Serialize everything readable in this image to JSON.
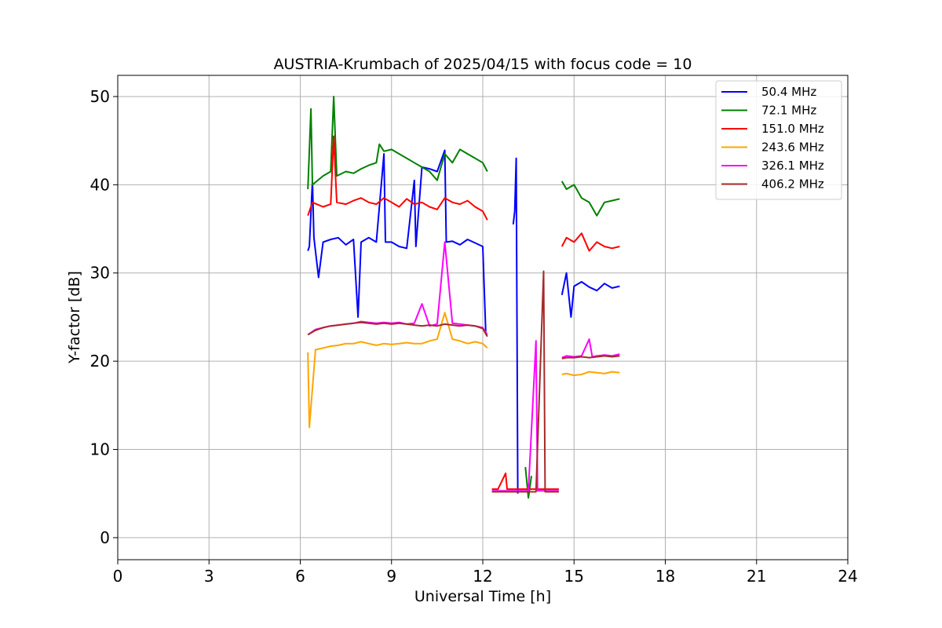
{
  "chart_data": {
    "type": "line",
    "title": "AUSTRIA-Krumbach of 2025/04/15 with focus code = 10",
    "xlabel": "Universal Time [h]",
    "ylabel": "Y-factor [dB]",
    "xlim": [
      0,
      24
    ],
    "ylim": [
      -2.5,
      52.4
    ],
    "xticks": [
      "0",
      "3",
      "6",
      "9",
      "12",
      "15",
      "18",
      "21",
      "24"
    ],
    "yticks": [
      "0",
      "10",
      "20",
      "30",
      "40",
      "50"
    ],
    "grid": true,
    "legend_position": "top-right",
    "series": [
      {
        "name": " 50.4 MHz",
        "color": "#0000ff",
        "segments": [
          [
            [
              6.25,
              32.5
            ],
            [
              6.3,
              33.0
            ],
            [
              6.4,
              40.4
            ],
            [
              6.45,
              34.0
            ],
            [
              6.6,
              29.5
            ],
            [
              6.75,
              33.5
            ],
            [
              7.0,
              33.8
            ],
            [
              7.25,
              34.0
            ],
            [
              7.5,
              33.2
            ],
            [
              7.75,
              33.8
            ],
            [
              7.9,
              25.0
            ],
            [
              8.0,
              33.5
            ],
            [
              8.25,
              34.0
            ],
            [
              8.5,
              33.5
            ],
            [
              8.75,
              43.5
            ],
            [
              8.8,
              33.5
            ],
            [
              9.0,
              33.5
            ],
            [
              9.25,
              33.0
            ],
            [
              9.5,
              32.8
            ],
            [
              9.75,
              40.5
            ],
            [
              9.8,
              33.0
            ],
            [
              10.0,
              42.0
            ],
            [
              10.25,
              41.8
            ],
            [
              10.5,
              41.5
            ],
            [
              10.75,
              43.9
            ],
            [
              10.8,
              33.5
            ],
            [
              11.0,
              33.6
            ],
            [
              11.25,
              33.2
            ],
            [
              11.5,
              33.8
            ],
            [
              11.75,
              33.4
            ],
            [
              12.0,
              33.0
            ],
            [
              12.1,
              23.0
            ]
          ],
          [
            [
              13.0,
              35.5
            ],
            [
              13.05,
              37.0
            ],
            [
              13.1,
              43.0
            ],
            [
              13.15,
              5.0
            ]
          ],
          [
            [
              14.6,
              27.5
            ],
            [
              14.75,
              30.0
            ],
            [
              14.9,
              25.0
            ],
            [
              15.0,
              28.5
            ],
            [
              15.25,
              29.0
            ],
            [
              15.5,
              28.4
            ],
            [
              15.75,
              28.0
            ],
            [
              16.0,
              28.8
            ],
            [
              16.25,
              28.3
            ],
            [
              16.5,
              28.5
            ]
          ]
        ]
      },
      {
        "name": " 72.1 MHz",
        "color": "#008000",
        "segments": [
          [
            [
              6.25,
              39.5
            ],
            [
              6.35,
              48.6
            ],
            [
              6.4,
              40.0
            ],
            [
              6.75,
              41.0
            ],
            [
              7.0,
              41.5
            ],
            [
              7.1,
              50.0
            ],
            [
              7.2,
              41.0
            ],
            [
              7.5,
              41.5
            ],
            [
              7.75,
              41.3
            ],
            [
              8.0,
              41.8
            ],
            [
              8.25,
              42.2
            ],
            [
              8.5,
              42.5
            ],
            [
              8.6,
              44.6
            ],
            [
              8.75,
              43.8
            ],
            [
              9.0,
              44.0
            ],
            [
              9.25,
              43.5
            ],
            [
              9.5,
              43.0
            ],
            [
              9.75,
              42.5
            ],
            [
              10.0,
              42.0
            ],
            [
              10.25,
              41.5
            ],
            [
              10.5,
              40.5
            ],
            [
              10.75,
              43.5
            ],
            [
              11.0,
              42.5
            ],
            [
              11.25,
              44.0
            ],
            [
              11.5,
              43.5
            ],
            [
              11.75,
              43.0
            ],
            [
              12.0,
              42.5
            ],
            [
              12.15,
              41.5
            ]
          ],
          [
            [
              13.4,
              8.0
            ],
            [
              13.5,
              4.5
            ],
            [
              13.6,
              7.0
            ]
          ],
          [
            [
              14.6,
              40.4
            ],
            [
              14.75,
              39.5
            ],
            [
              15.0,
              40.0
            ],
            [
              15.25,
              38.5
            ],
            [
              15.5,
              38.0
            ],
            [
              15.75,
              36.5
            ],
            [
              16.0,
              38.0
            ],
            [
              16.25,
              38.2
            ],
            [
              16.5,
              38.4
            ]
          ]
        ]
      },
      {
        "name": " 151.0 MHz",
        "color": "#ff0000",
        "segments": [
          [
            [
              6.25,
              36.5
            ],
            [
              6.4,
              38.0
            ],
            [
              6.75,
              37.5
            ],
            [
              7.0,
              37.8
            ],
            [
              7.1,
              45.5
            ],
            [
              7.2,
              38.0
            ],
            [
              7.5,
              37.8
            ],
            [
              7.75,
              38.2
            ],
            [
              8.0,
              38.5
            ],
            [
              8.25,
              38.0
            ],
            [
              8.5,
              37.8
            ],
            [
              8.75,
              38.5
            ],
            [
              9.0,
              38.0
            ],
            [
              9.25,
              37.5
            ],
            [
              9.5,
              38.4
            ],
            [
              9.75,
              37.8
            ],
            [
              10.0,
              38.0
            ],
            [
              10.25,
              37.5
            ],
            [
              10.5,
              37.2
            ],
            [
              10.75,
              38.5
            ],
            [
              11.0,
              38.0
            ],
            [
              11.25,
              37.8
            ],
            [
              11.5,
              38.2
            ],
            [
              11.75,
              37.5
            ],
            [
              12.0,
              37.0
            ],
            [
              12.15,
              36.0
            ]
          ],
          [
            [
              12.3,
              5.5
            ],
            [
              12.5,
              5.5
            ],
            [
              12.75,
              7.3
            ],
            [
              12.8,
              5.5
            ],
            [
              13.0,
              5.5
            ],
            [
              13.25,
              5.5
            ],
            [
              13.5,
              5.5
            ],
            [
              13.75,
              5.5
            ],
            [
              14.0,
              5.5
            ],
            [
              14.25,
              5.5
            ],
            [
              14.5,
              5.5
            ]
          ],
          [
            [
              14.6,
              33.0
            ],
            [
              14.75,
              34.0
            ],
            [
              15.0,
              33.5
            ],
            [
              15.25,
              34.5
            ],
            [
              15.5,
              32.5
            ],
            [
              15.75,
              33.5
            ],
            [
              16.0,
              33.0
            ],
            [
              16.25,
              32.8
            ],
            [
              16.5,
              33.0
            ]
          ]
        ]
      },
      {
        "name": " 243.6 MHz",
        "color": "#ffa500",
        "segments": [
          [
            [
              6.25,
              21.0
            ],
            [
              6.3,
              12.5
            ],
            [
              6.5,
              21.3
            ],
            [
              6.75,
              21.5
            ],
            [
              7.0,
              21.7
            ],
            [
              7.25,
              21.8
            ],
            [
              7.5,
              22.0
            ],
            [
              7.75,
              22.0
            ],
            [
              8.0,
              22.2
            ],
            [
              8.25,
              22.0
            ],
            [
              8.5,
              21.8
            ],
            [
              8.75,
              22.0
            ],
            [
              9.0,
              21.9
            ],
            [
              9.25,
              22.0
            ],
            [
              9.5,
              22.1
            ],
            [
              9.75,
              22.0
            ],
            [
              10.0,
              22.0
            ],
            [
              10.25,
              22.3
            ],
            [
              10.5,
              22.5
            ],
            [
              10.75,
              25.5
            ],
            [
              11.0,
              22.5
            ],
            [
              11.25,
              22.3
            ],
            [
              11.5,
              22.0
            ],
            [
              11.75,
              22.2
            ],
            [
              12.0,
              22.0
            ],
            [
              12.15,
              21.5
            ]
          ],
          [
            [
              14.6,
              18.5
            ],
            [
              14.75,
              18.6
            ],
            [
              15.0,
              18.4
            ],
            [
              15.25,
              18.5
            ],
            [
              15.5,
              18.8
            ],
            [
              15.75,
              18.7
            ],
            [
              16.0,
              18.6
            ],
            [
              16.25,
              18.8
            ],
            [
              16.5,
              18.7
            ]
          ]
        ]
      },
      {
        "name": " 326.1 MHz",
        "color": "#ff00ff",
        "segments": [
          [
            [
              6.25,
              23.0
            ],
            [
              6.5,
              23.6
            ],
            [
              6.75,
              23.8
            ],
            [
              7.0,
              24.0
            ],
            [
              7.25,
              24.1
            ],
            [
              7.5,
              24.2
            ],
            [
              7.75,
              24.3
            ],
            [
              8.0,
              24.5
            ],
            [
              8.25,
              24.4
            ],
            [
              8.5,
              24.3
            ],
            [
              8.75,
              24.4
            ],
            [
              9.0,
              24.3
            ],
            [
              9.25,
              24.4
            ],
            [
              9.5,
              24.2
            ],
            [
              9.75,
              24.3
            ],
            [
              10.0,
              26.5
            ],
            [
              10.25,
              24.0
            ],
            [
              10.5,
              24.2
            ],
            [
              10.75,
              33.5
            ],
            [
              11.0,
              24.3
            ],
            [
              11.25,
              24.2
            ],
            [
              11.5,
              24.1
            ],
            [
              11.75,
              24.0
            ],
            [
              12.0,
              23.8
            ],
            [
              12.15,
              23.0
            ]
          ],
          [
            [
              12.3,
              5.3
            ],
            [
              12.5,
              5.3
            ],
            [
              13.0,
              5.3
            ],
            [
              13.5,
              5.3
            ],
            [
              13.75,
              22.3
            ],
            [
              13.8,
              5.3
            ],
            [
              14.0,
              5.3
            ],
            [
              14.25,
              5.3
            ],
            [
              14.5,
              5.3
            ]
          ],
          [
            [
              14.6,
              20.4
            ],
            [
              14.75,
              20.6
            ],
            [
              15.0,
              20.5
            ],
            [
              15.25,
              20.6
            ],
            [
              15.5,
              22.5
            ],
            [
              15.6,
              20.5
            ],
            [
              15.75,
              20.6
            ],
            [
              16.0,
              20.7
            ],
            [
              16.25,
              20.6
            ],
            [
              16.5,
              20.8
            ]
          ]
        ]
      },
      {
        "name": " 406.2 MHz",
        "color": "#a52a2a",
        "segments": [
          [
            [
              6.25,
              23.0
            ],
            [
              6.5,
              23.5
            ],
            [
              6.75,
              23.8
            ],
            [
              7.0,
              24.0
            ],
            [
              7.25,
              24.1
            ],
            [
              7.5,
              24.2
            ],
            [
              7.75,
              24.3
            ],
            [
              8.0,
              24.4
            ],
            [
              8.25,
              24.3
            ],
            [
              8.5,
              24.2
            ],
            [
              8.75,
              24.3
            ],
            [
              9.0,
              24.2
            ],
            [
              9.25,
              24.3
            ],
            [
              9.5,
              24.2
            ],
            [
              9.75,
              24.1
            ],
            [
              10.0,
              24.0
            ],
            [
              10.25,
              24.1
            ],
            [
              10.5,
              24.0
            ],
            [
              10.75,
              24.2
            ],
            [
              11.0,
              24.1
            ],
            [
              11.25,
              24.0
            ],
            [
              11.5,
              24.1
            ],
            [
              11.75,
              24.0
            ],
            [
              12.0,
              23.7
            ],
            [
              12.15,
              22.8
            ]
          ],
          [
            [
              12.3,
              5.2
            ],
            [
              12.5,
              5.2
            ],
            [
              13.0,
              5.2
            ],
            [
              13.25,
              5.2
            ],
            [
              13.5,
              5.2
            ],
            [
              13.75,
              5.2
            ],
            [
              14.0,
              30.2
            ],
            [
              14.05,
              5.2
            ],
            [
              14.25,
              5.2
            ],
            [
              14.5,
              5.2
            ]
          ],
          [
            [
              14.6,
              20.3
            ],
            [
              14.75,
              20.4
            ],
            [
              15.0,
              20.4
            ],
            [
              15.25,
              20.5
            ],
            [
              15.5,
              20.4
            ],
            [
              15.75,
              20.5
            ],
            [
              16.0,
              20.6
            ],
            [
              16.25,
              20.5
            ],
            [
              16.5,
              20.6
            ]
          ]
        ]
      }
    ]
  }
}
